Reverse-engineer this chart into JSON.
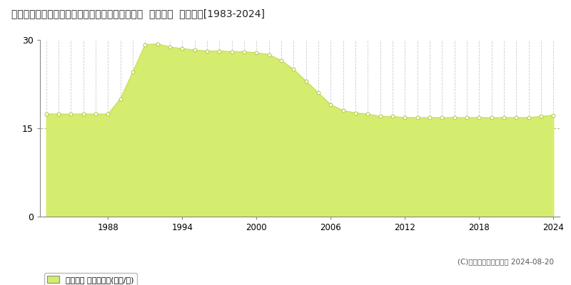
{
  "title": "愛知県知多郡東浦町大字緒川字肥後原１番２１０  地価公示  地価推移[1983-2024]",
  "years": [
    1983,
    1984,
    1985,
    1986,
    1987,
    1988,
    1989,
    1990,
    1991,
    1992,
    1993,
    1994,
    1995,
    1996,
    1997,
    1998,
    1999,
    2000,
    2001,
    2002,
    2003,
    2004,
    2005,
    2006,
    2007,
    2008,
    2009,
    2010,
    2011,
    2012,
    2013,
    2014,
    2015,
    2016,
    2017,
    2018,
    2019,
    2020,
    2021,
    2022,
    2023,
    2024
  ],
  "values": [
    17.4,
    17.4,
    17.4,
    17.4,
    17.4,
    17.4,
    20.0,
    24.5,
    29.2,
    29.3,
    28.8,
    28.5,
    28.3,
    28.1,
    28.1,
    28.0,
    28.0,
    27.8,
    27.5,
    26.5,
    25.0,
    23.0,
    21.0,
    19.0,
    18.0,
    17.6,
    17.4,
    17.0,
    17.0,
    16.8,
    16.8,
    16.8,
    16.8,
    16.8,
    16.8,
    16.8,
    16.8,
    16.8,
    16.8,
    16.8,
    17.0,
    17.2
  ],
  "line_color": "#c8e064",
  "fill_color": "#d4ed6e",
  "marker_color": "#ffffff",
  "marker_edge_color": "#b8cc50",
  "ylim": [
    0,
    30
  ],
  "yticks": [
    0,
    15,
    30
  ],
  "xlabel_ticks": [
    1988,
    1994,
    2000,
    2006,
    2012,
    2018,
    2024
  ],
  "background_color": "#ffffff",
  "plot_bg_color": "#ffffff",
  "grid_color_vert": "#cccccc",
  "grid_color_horiz": "#bbbb88",
  "copyright_text": "(C)土地価格ドットコム 2024-08-20",
  "legend_label": "地価公示 平均坪単価(万円/坪)"
}
